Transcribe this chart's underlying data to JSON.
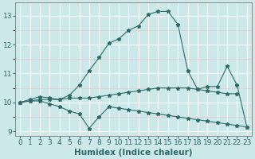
{
  "xlabel": "Humidex (Indice chaleur)",
  "x_values": [
    0,
    1,
    2,
    3,
    4,
    5,
    6,
    7,
    8,
    9,
    10,
    11,
    12,
    13,
    14,
    15,
    16,
    17,
    18,
    19,
    20,
    21,
    22,
    23
  ],
  "line_peak": [
    10.0,
    10.1,
    10.2,
    10.15,
    10.1,
    10.25,
    10.6,
    11.1,
    11.55,
    12.05,
    12.2,
    12.5,
    12.65,
    13.05,
    13.15,
    13.15,
    12.7,
    11.1,
    10.45,
    10.55,
    10.55,
    11.25,
    10.6,
    9.15
  ],
  "line_flat": [
    10.0,
    10.05,
    10.1,
    10.1,
    10.1,
    10.15,
    10.15,
    10.15,
    10.2,
    10.25,
    10.3,
    10.35,
    10.4,
    10.45,
    10.5,
    10.5,
    10.5,
    10.5,
    10.45,
    10.4,
    10.35,
    10.3,
    10.3,
    null
  ],
  "line_low": [
    10.0,
    10.05,
    10.05,
    9.95,
    9.85,
    9.7,
    9.6,
    9.1,
    9.5,
    9.85,
    9.8,
    9.75,
    9.7,
    9.65,
    9.6,
    9.55,
    9.5,
    9.45,
    9.4,
    9.35,
    9.3,
    9.25,
    9.2,
    9.15
  ],
  "bg_color": "#cde8e8",
  "line_color": "#2d6b6b",
  "grid_color_major": "#ffffff",
  "grid_color_minor": "#e8c8c8",
  "ylim": [
    8.85,
    13.45
  ],
  "xlim": [
    -0.5,
    23.5
  ],
  "yticks": [
    9,
    10,
    11,
    12,
    13
  ],
  "xticks": [
    0,
    1,
    2,
    3,
    4,
    5,
    6,
    7,
    8,
    9,
    10,
    11,
    12,
    13,
    14,
    15,
    16,
    17,
    18,
    19,
    20,
    21,
    22,
    23
  ],
  "tick_fontsize": 6.5,
  "label_fontsize": 7.5
}
